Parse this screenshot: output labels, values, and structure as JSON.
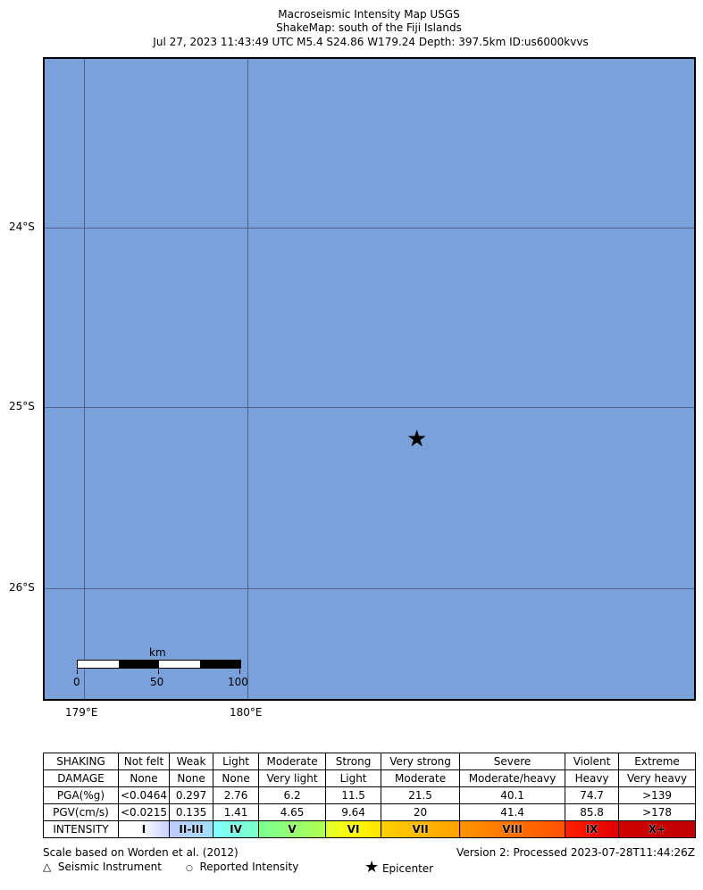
{
  "title": {
    "line1": "Macroseismic Intensity Map USGS",
    "line2": "ShakeMap: south of the Fiji Islands",
    "line3": "Jul 27, 2023 11:43:49 UTC M5.4 S24.86 W179.24 Depth: 397.5km ID:us6000kvvs"
  },
  "map": {
    "water_color": "#7aa1da",
    "lat_labels": [
      "24°S",
      "25°S",
      "26°S"
    ],
    "lon_labels": [
      "179°E",
      "180°E"
    ],
    "epicenter_icon": "star-icon",
    "scale_bar": {
      "unit": "km",
      "ticks": [
        "0",
        "50",
        "100"
      ]
    }
  },
  "legend": {
    "rows": [
      {
        "label": "SHAKING",
        "cells": [
          "Not felt",
          "Weak",
          "Light",
          "Moderate",
          "Strong",
          "Very strong",
          "Severe",
          "Violent",
          "Extreme"
        ]
      },
      {
        "label": "DAMAGE",
        "cells": [
          "None",
          "None",
          "None",
          "Very light",
          "Light",
          "Moderate",
          "Moderate/heavy",
          "Heavy",
          "Very heavy"
        ]
      },
      {
        "label": "PGA(%g)",
        "cells": [
          "<0.0464",
          "0.297",
          "2.76",
          "6.2",
          "11.5",
          "21.5",
          "40.1",
          "74.7",
          ">139"
        ]
      },
      {
        "label": "PGV(cm/s)",
        "cells": [
          "<0.0215",
          "0.135",
          "1.41",
          "4.65",
          "9.64",
          "20",
          "41.4",
          "85.8",
          ">178"
        ]
      },
      {
        "label": "INTENSITY",
        "cells": [
          "I",
          "II-III",
          "IV",
          "V",
          "VI",
          "VII",
          "VIII",
          "IX",
          "X+"
        ]
      }
    ],
    "intensity_colors": [
      "#ffffff",
      "#bfccff",
      "#80ffff",
      "#7aff93",
      "#ffff00",
      "#ffc800",
      "#ff9100",
      "#ff0000",
      "#c80000"
    ],
    "scale_note": "Scale based on Worden et al. (2012)",
    "version": "Version 2: Processed 2023-07-28T11:44:26Z",
    "symbols": [
      "Seismic Instrument",
      "Reported Intensity",
      "Epicenter"
    ]
  }
}
